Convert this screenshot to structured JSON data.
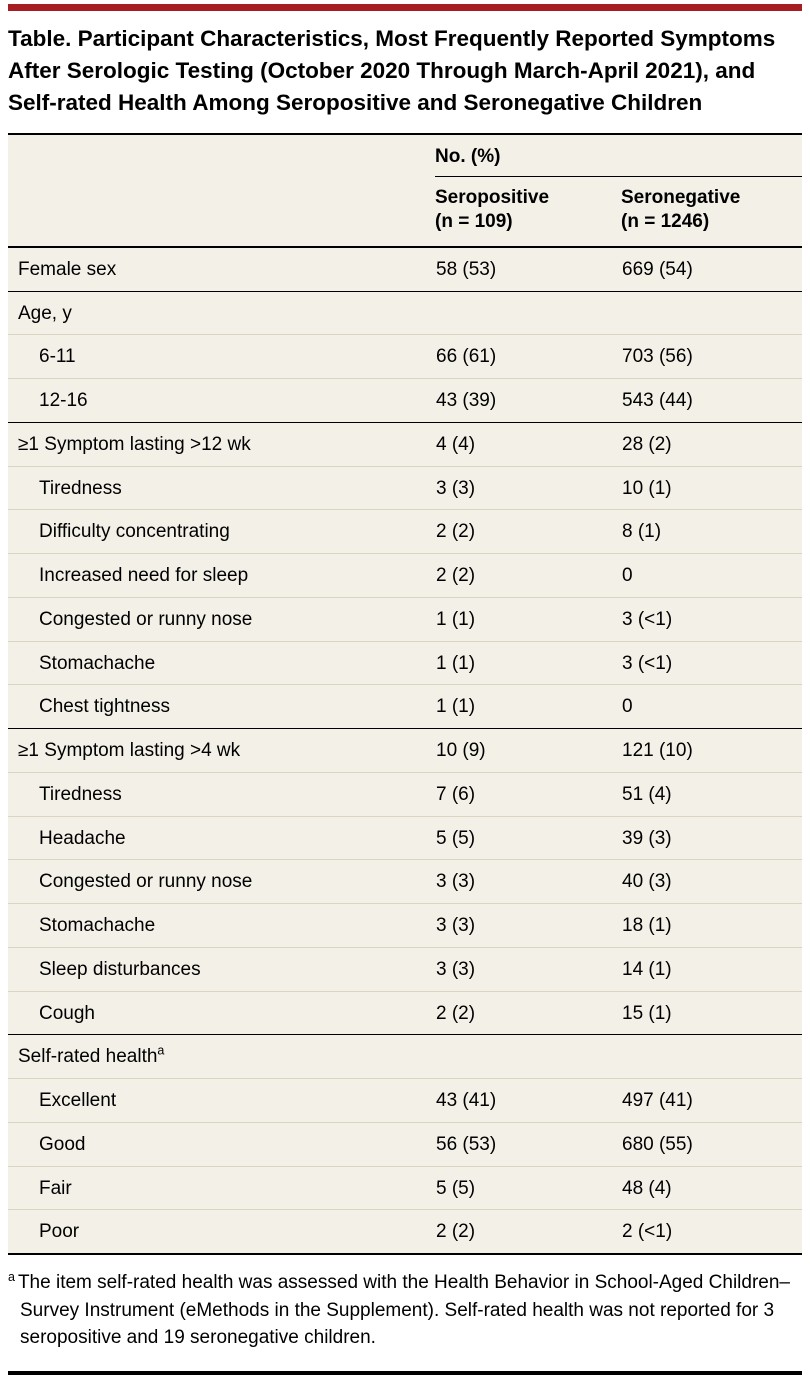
{
  "accent_color": "#A71E22",
  "title": "Table. Participant Characteristics, Most Frequently Reported Symptoms After Serologic Testing (October 2020 Through March-April 2021), and Self-rated Health Among Seropositive and Seronegative Children",
  "header": {
    "group_label": "No. (%)",
    "columns": [
      {
        "line1": "Seropositive",
        "line2": "(n = 109)"
      },
      {
        "line1": "Seronegative",
        "line2": "(n = 1246)"
      }
    ]
  },
  "rows": [
    {
      "label": "Female sex",
      "indent": 0,
      "section": true,
      "seropositive": "58 (53)",
      "seronegative": "669 (54)"
    },
    {
      "label": "Age, y",
      "indent": 0,
      "section": true,
      "seropositive": "",
      "seronegative": ""
    },
    {
      "label": "6-11",
      "indent": 1,
      "section": false,
      "seropositive": "66 (61)",
      "seronegative": "703 (56)"
    },
    {
      "label": "12-16",
      "indent": 1,
      "section": false,
      "seropositive": "43 (39)",
      "seronegative": "543 (44)"
    },
    {
      "label": "≥1 Symptom lasting >12 wk",
      "indent": 0,
      "section": true,
      "seropositive": "4 (4)",
      "seronegative": "28 (2)"
    },
    {
      "label": "Tiredness",
      "indent": 1,
      "section": false,
      "seropositive": "3 (3)",
      "seronegative": "10 (1)"
    },
    {
      "label": "Difficulty concentrating",
      "indent": 1,
      "section": false,
      "seropositive": "2 (2)",
      "seronegative": "8 (1)"
    },
    {
      "label": "Increased need for sleep",
      "indent": 1,
      "section": false,
      "seropositive": "2 (2)",
      "seronegative": "0"
    },
    {
      "label": "Congested or runny nose",
      "indent": 1,
      "section": false,
      "seropositive": "1 (1)",
      "seronegative": "3 (<1)"
    },
    {
      "label": "Stomachache",
      "indent": 1,
      "section": false,
      "seropositive": "1 (1)",
      "seronegative": "3 (<1)"
    },
    {
      "label": "Chest tightness",
      "indent": 1,
      "section": false,
      "seropositive": "1 (1)",
      "seronegative": "0"
    },
    {
      "label": "≥1 Symptom lasting >4 wk",
      "indent": 0,
      "section": true,
      "seropositive": "10 (9)",
      "seronegative": "121 (10)"
    },
    {
      "label": "Tiredness",
      "indent": 1,
      "section": false,
      "seropositive": "7 (6)",
      "seronegative": "51 (4)"
    },
    {
      "label": "Headache",
      "indent": 1,
      "section": false,
      "seropositive": "5 (5)",
      "seronegative": "39 (3)"
    },
    {
      "label": "Congested or runny nose",
      "indent": 1,
      "section": false,
      "seropositive": "3 (3)",
      "seronegative": "40 (3)"
    },
    {
      "label": "Stomachache",
      "indent": 1,
      "section": false,
      "seropositive": "3 (3)",
      "seronegative": "18 (1)"
    },
    {
      "label": "Sleep disturbances",
      "indent": 1,
      "section": false,
      "seropositive": "3 (3)",
      "seronegative": "14 (1)"
    },
    {
      "label": "Cough",
      "indent": 1,
      "section": false,
      "seropositive": "2 (2)",
      "seronegative": "15 (1)"
    },
    {
      "label": "Self-rated health",
      "sup": "a",
      "indent": 0,
      "section": true,
      "seropositive": "",
      "seronegative": ""
    },
    {
      "label": "Excellent",
      "indent": 1,
      "section": false,
      "seropositive": "43 (41)",
      "seronegative": "497 (41)"
    },
    {
      "label": "Good",
      "indent": 1,
      "section": false,
      "seropositive": "56 (53)",
      "seronegative": "680 (55)"
    },
    {
      "label": "Fair",
      "indent": 1,
      "section": false,
      "seropositive": "5 (5)",
      "seronegative": "48 (4)"
    },
    {
      "label": "Poor",
      "indent": 1,
      "section": false,
      "seropositive": "2 (2)",
      "seronegative": "2 (<1)"
    }
  ],
  "footnote": {
    "marker": "a",
    "text": "The item self-rated health was assessed with the Health Behavior in School-Aged Children–Survey Instrument (eMethods in the Supplement). Self-rated health was not reported for 3 seropositive and 19 seronegative children."
  }
}
